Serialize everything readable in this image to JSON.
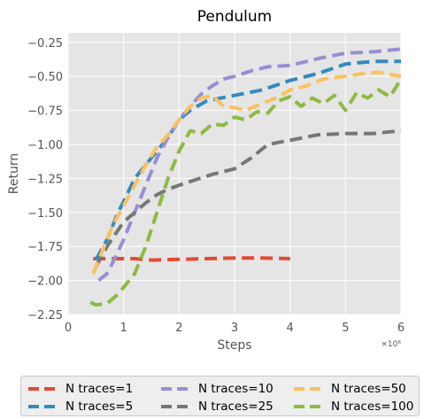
{
  "chart_data": {
    "type": "line",
    "title": "Pendulum",
    "xlabel": "Steps",
    "ylabel": "Return",
    "x_scale_label": "×10⁶",
    "xlim": [
      0,
      6
    ],
    "ylim": [
      -2.25,
      -0.18
    ],
    "x_ticks": [
      0,
      1,
      2,
      3,
      4,
      5,
      6
    ],
    "x_tick_labels": [
      "0",
      "1",
      "2",
      "3",
      "4",
      "5",
      "6"
    ],
    "y_ticks": [
      -2.25,
      -2.0,
      -1.75,
      -1.5,
      -1.25,
      -1.0,
      -0.75,
      -0.5,
      -0.25
    ],
    "y_tick_labels": [
      "−2.25",
      "−2.00",
      "−1.75",
      "−1.50",
      "−1.25",
      "−1.00",
      "−0.75",
      "−0.50",
      "−0.25"
    ],
    "grid": true,
    "legend_position": "bottom",
    "series": [
      {
        "name": "N traces=1",
        "color": "#E24A33",
        "x": [
          0.45,
          0.6,
          0.8,
          1.0,
          1.2,
          1.5,
          2.0,
          2.5,
          3.0,
          3.5,
          4.0
        ],
        "y": [
          -1.84,
          -1.84,
          -1.84,
          -1.84,
          -1.84,
          -1.85,
          -1.845,
          -1.84,
          -1.835,
          -1.835,
          -1.84
        ]
      },
      {
        "name": "N traces=5",
        "color": "#348ABD",
        "x": [
          0.5,
          0.7,
          0.9,
          1.0,
          1.2,
          1.5,
          1.8,
          2.0,
          2.2,
          2.5,
          3.0,
          3.5,
          4.0,
          4.5,
          5.0,
          5.5,
          6.0
        ],
        "y": [
          -1.85,
          -1.7,
          -1.5,
          -1.42,
          -1.25,
          -1.1,
          -0.95,
          -0.82,
          -0.75,
          -0.68,
          -0.64,
          -0.6,
          -0.53,
          -0.48,
          -0.41,
          -0.39,
          -0.39
        ]
      },
      {
        "name": "N traces=10",
        "color": "#988ED5",
        "x": [
          0.55,
          0.7,
          0.85,
          1.0,
          1.2,
          1.4,
          1.6,
          1.8,
          2.0,
          2.2,
          2.4,
          2.6,
          2.8,
          3.0,
          3.3,
          3.6,
          4.0,
          4.5,
          5.0,
          5.5,
          6.0
        ],
        "y": [
          -2.0,
          -1.95,
          -1.83,
          -1.7,
          -1.5,
          -1.3,
          -1.1,
          -0.95,
          -0.82,
          -0.72,
          -0.63,
          -0.57,
          -0.52,
          -0.5,
          -0.46,
          -0.43,
          -0.42,
          -0.37,
          -0.33,
          -0.32,
          -0.3
        ]
      },
      {
        "name": "N traces=25",
        "color": "#777777",
        "x": [
          0.5,
          0.7,
          0.9,
          1.0,
          1.2,
          1.4,
          1.6,
          1.8,
          2.0,
          2.3,
          2.6,
          3.0,
          3.3,
          3.6,
          4.0,
          4.5,
          5.0,
          5.5,
          6.0
        ],
        "y": [
          -1.9,
          -1.75,
          -1.63,
          -1.57,
          -1.5,
          -1.43,
          -1.37,
          -1.33,
          -1.3,
          -1.26,
          -1.22,
          -1.18,
          -1.1,
          -1.0,
          -0.97,
          -0.93,
          -0.92,
          -0.92,
          -0.9
        ]
      },
      {
        "name": "N traces=50",
        "color": "#FBC15E",
        "x": [
          0.45,
          0.6,
          0.8,
          1.0,
          1.2,
          1.4,
          1.6,
          1.8,
          2.0,
          2.2,
          2.4,
          2.6,
          2.8,
          3.0,
          3.2,
          3.5,
          3.8,
          4.0,
          4.3,
          4.6,
          5.0,
          5.3,
          5.6,
          6.0
        ],
        "y": [
          -1.95,
          -1.8,
          -1.6,
          -1.45,
          -1.3,
          -1.15,
          -1.02,
          -0.93,
          -0.82,
          -0.72,
          -0.66,
          -0.64,
          -0.72,
          -0.73,
          -0.75,
          -0.7,
          -0.65,
          -0.6,
          -0.57,
          -0.52,
          -0.5,
          -0.48,
          -0.47,
          -0.5
        ]
      },
      {
        "name": "N traces=100",
        "color": "#8EBA42",
        "x": [
          0.4,
          0.5,
          0.7,
          0.9,
          1.0,
          1.2,
          1.4,
          1.6,
          1.8,
          2.0,
          2.2,
          2.4,
          2.6,
          2.8,
          3.0,
          3.2,
          3.4,
          3.6,
          3.8,
          4.0,
          4.2,
          4.4,
          4.6,
          4.8,
          5.0,
          5.2,
          5.4,
          5.6,
          5.8,
          6.0
        ],
        "y": [
          -2.16,
          -2.18,
          -2.17,
          -2.1,
          -2.05,
          -1.95,
          -1.75,
          -1.5,
          -1.25,
          -1.05,
          -0.9,
          -0.92,
          -0.85,
          -0.86,
          -0.8,
          -0.82,
          -0.76,
          -0.77,
          -0.68,
          -0.65,
          -0.72,
          -0.66,
          -0.7,
          -0.64,
          -0.75,
          -0.62,
          -0.66,
          -0.6,
          -0.65,
          -0.52
        ]
      }
    ]
  }
}
